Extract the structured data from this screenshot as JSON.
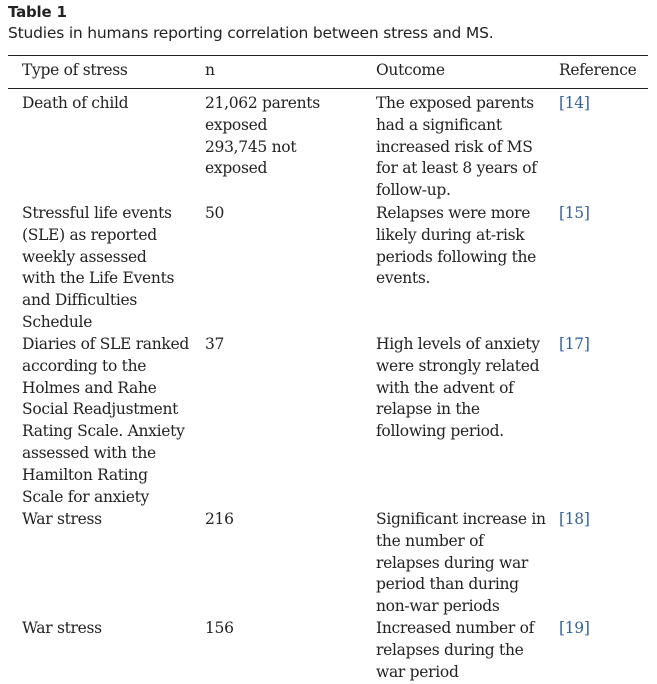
{
  "table": {
    "label": "Table 1",
    "caption": "Studies in humans reporting correlation between stress and MS.",
    "headers": {
      "type": "Type of stress",
      "n": "n",
      "outcome": "Outcome",
      "reference": "Reference"
    },
    "rows": [
      {
        "type": "Death of child",
        "n": "21,062 parents\nexposed\n293,745 not\nexposed",
        "outcome": "The exposed parents\nhad a significant\nincreased risk of MS\nfor at least 8 years of\nfollow-up.",
        "reference": "[14]"
      },
      {
        "type": "Stressful life events\n(SLE) as reported\nweekly assessed\nwith the Life Events\nand Difficulties\nSchedule",
        "n": "50",
        "outcome": "Relapses were more\nlikely during at-risk\nperiods following the\nevents.",
        "reference": "[15]"
      },
      {
        "type": "Diaries of SLE ranked\naccording to the\nHolmes and Rahe\nSocial Readjustment\nRating Scale. Anxiety\nassessed with the\nHamilton Rating\nScale for anxiety",
        "n": "37",
        "outcome": "High levels of anxiety\nwere strongly related\nwith the advent of\nrelapse in the\nfollowing period.",
        "reference": "[17]"
      },
      {
        "type": "War stress",
        "n": "216",
        "outcome": "Significant increase in\nthe number of\nrelapses during war\nperiod than during\nnon-war periods",
        "reference": "[18]"
      },
      {
        "type": "War stress",
        "n": "156",
        "outcome": "Increased number of\nrelapses during the\nwar period",
        "reference": "[19]"
      }
    ]
  }
}
